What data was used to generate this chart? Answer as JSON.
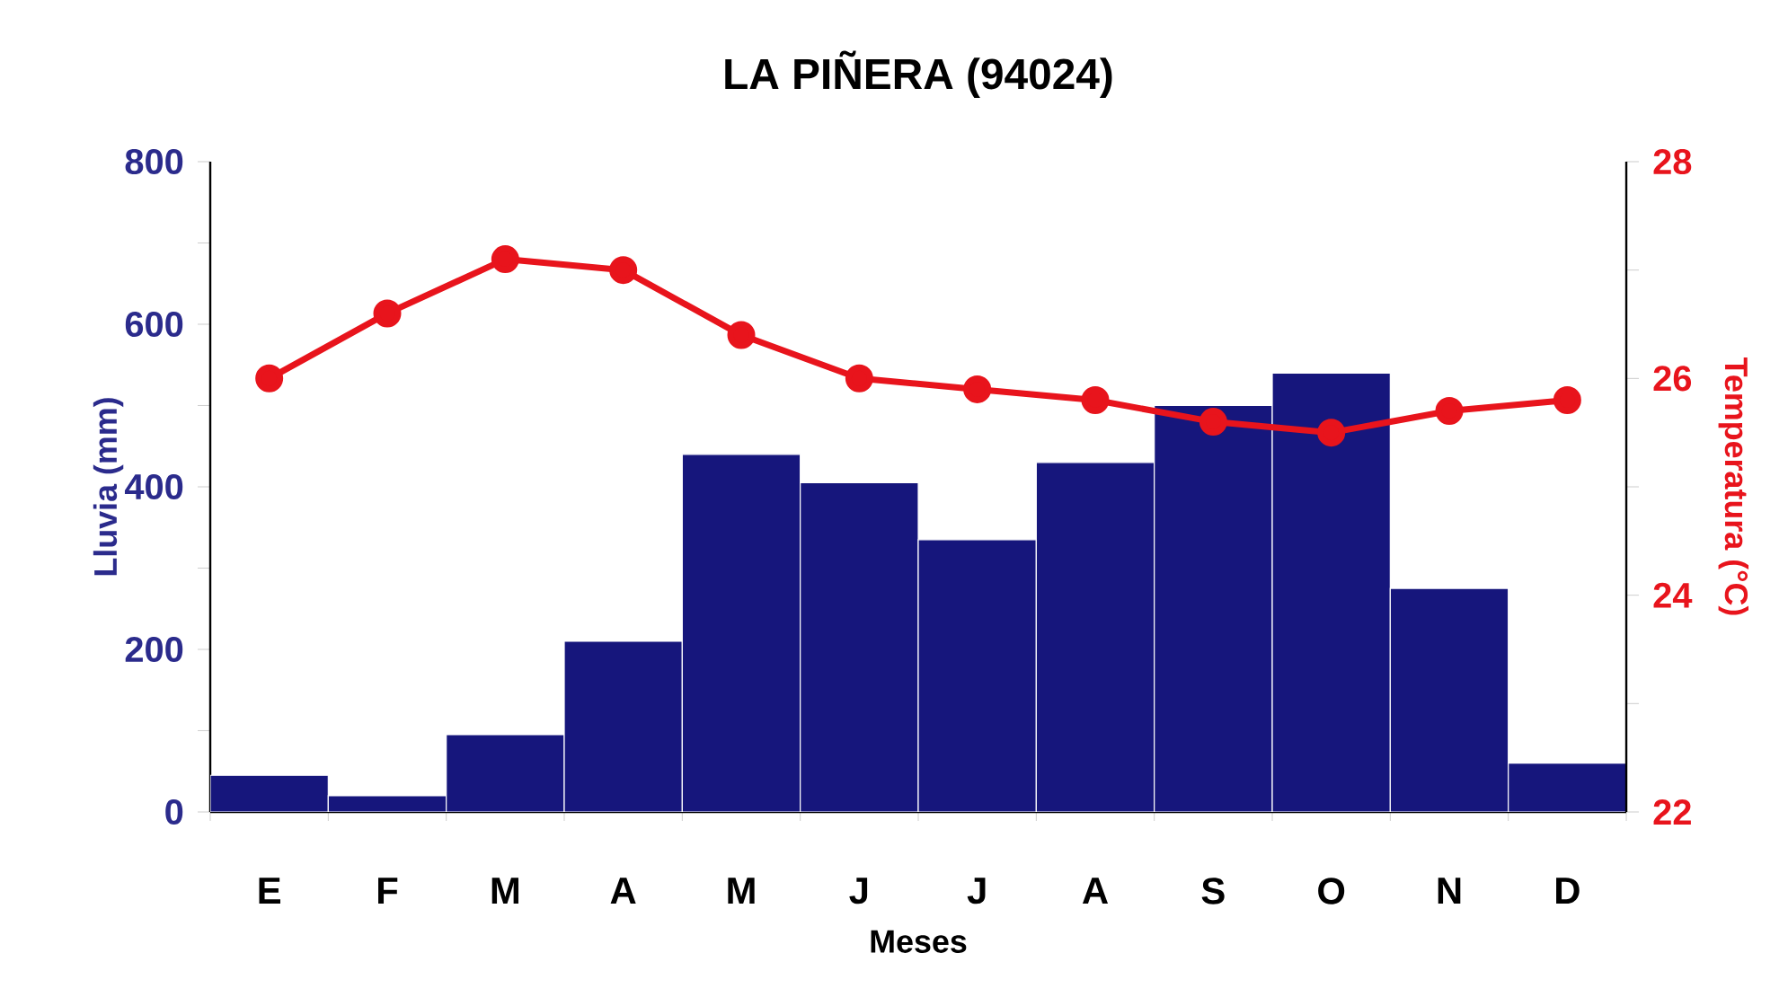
{
  "chart_data": {
    "type": "bar",
    "title": "LA PIÑERA (94024)",
    "xlabel": "Meses",
    "ylabel": "Lluvia (mm)",
    "y2label": "Temperatura (°C)",
    "categories": [
      "E",
      "F",
      "M",
      "A",
      "M",
      "J",
      "J",
      "A",
      "S",
      "O",
      "N",
      "D"
    ],
    "ylim": [
      0,
      800
    ],
    "yticks": [
      0,
      {
        "value": 100,
        "label": null
      },
      200,
      {
        "value": 300,
        "label": null
      },
      400,
      {
        "value": 500,
        "label": null
      },
      600,
      {
        "value": 700,
        "label": null
      },
      800
    ],
    "y2lim": [
      22,
      28
    ],
    "y2ticks": [
      22,
      {
        "value": 23,
        "label": null
      },
      24,
      {
        "value": 25,
        "label": null
      },
      26,
      {
        "value": 27,
        "label": null
      },
      28
    ],
    "series": [
      {
        "color": "#16167c",
        "values": [
          45,
          20,
          95,
          210,
          440,
          405,
          335,
          430,
          500,
          540,
          275,
          60
        ]
      },
      {
        "type": "line",
        "axis": "y2",
        "color": "#e8141c",
        "marker": "circle",
        "values": [
          26.0,
          26.6,
          27.1,
          27.0,
          26.4,
          26.0,
          25.9,
          25.8,
          25.6,
          25.5,
          25.7,
          25.8
        ]
      }
    ]
  }
}
